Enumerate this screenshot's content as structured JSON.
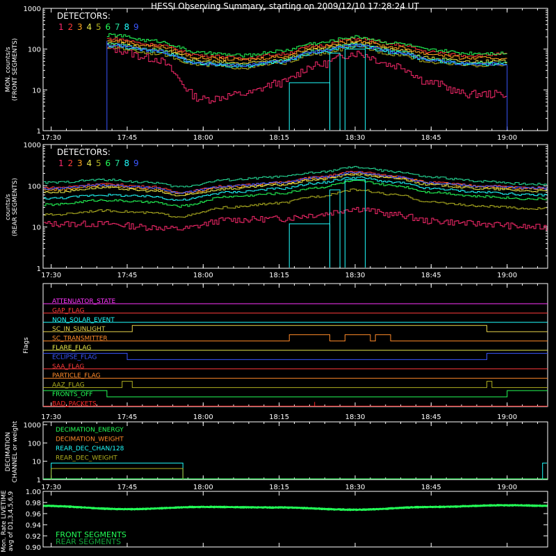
{
  "title": "HESSI Observing Summary, starting on 2009/12/10 17:28:24 UT",
  "time_ticks": [
    "17:30",
    "17:45",
    "18:00",
    "18:15",
    "18:30",
    "18:45",
    "19:00"
  ],
  "detectors_label": "DETECTORS:",
  "detector_nums": [
    "1",
    "2",
    "3",
    "4",
    "5",
    "6",
    "7",
    "8",
    "9"
  ],
  "colors": {
    "det": [
      "#ff2a6e",
      "#ff3b3b",
      "#ffa51f",
      "#e8e84a",
      "#b0b020",
      "#23ff57",
      "#26e09a",
      "#20ffff",
      "#3a56ff"
    ],
    "frame": "#ffffff",
    "background": "#000000"
  },
  "panels": {
    "front": {
      "ylabel_line1": "MON. counts/s",
      "ylabel_line2": "(FRONT SEGMENTS)",
      "y_ticks": [
        "1",
        "10",
        "100",
        "1000"
      ]
    },
    "rear": {
      "ylabel_line1": "counts/s",
      "ylabel_line2": "(REAR SEGMENTS)",
      "y_ticks": [
        "1",
        "10",
        "100",
        "1000"
      ]
    },
    "flags": {
      "ylabel": "Flags",
      "items": [
        {
          "label": "ATTENUATOR_STATE",
          "color": "#ff36ff"
        },
        {
          "label": "GAP_FLAG",
          "color": "#ff3b3b"
        },
        {
          "label": "NON_SOLAR_EVENT",
          "color": "#20ffff"
        },
        {
          "label": "SC_IN_SUNLIGHT",
          "color": "#e8d34a"
        },
        {
          "label": "SC_TRANSMITTER",
          "color": "#ff8a2a"
        },
        {
          "label": "FLARE_FLAG",
          "color": "#e8e84a"
        },
        {
          "label": "ECLIPSE_FLAG",
          "color": "#3a56ff"
        },
        {
          "label": "SAA_FLAG",
          "color": "#ff3b3b"
        },
        {
          "label": "PARTICLE_FLAG",
          "color": "#ff8a2a"
        },
        {
          "label": "AAZ_FLAG",
          "color": "#b0b020"
        },
        {
          "label": "FRONTS_OFF",
          "color": "#23ff57"
        },
        {
          "label": "BAD_PACKETS",
          "color": "#ff2a2a"
        }
      ]
    },
    "decimation": {
      "ylabel_line1": "DECIMATION",
      "ylabel_line2": "CHANNEL or weight",
      "y_ticks": [
        "1",
        "10",
        "100",
        "1000"
      ],
      "legend": [
        {
          "label": "DECIMATION_ENERGY",
          "color": "#23ff57"
        },
        {
          "label": "DECIMATION_WEIGHT",
          "color": "#ff8a2a"
        },
        {
          "label": "REAR_DEC_CHAN/128",
          "color": "#20ffff"
        },
        {
          "label": "REAR_DEC_WEIGHT",
          "color": "#b0b020"
        }
      ]
    },
    "livetime": {
      "ylabel_line1": "Mon. Rate LIVETIME",
      "ylabel_line2": "avg of D1,3,4,5,6,9",
      "y_ticks": [
        "0.90",
        "0.92",
        "0.94",
        "0.96",
        "0.98",
        "1.00"
      ],
      "legend": [
        {
          "label": "FRONT SEGMENTS",
          "color": "#23ff57"
        },
        {
          "label": "REAR SEGMENTS",
          "color": "#13a63a"
        }
      ]
    }
  },
  "chart_data": [
    {
      "type": "line",
      "title": "HESSI Observing Summary, starting on 2009/12/10 17:28:24 UT",
      "ylabel": "MON. counts/s (FRONT SEGMENTS)",
      "yscale": "log",
      "ylim": [
        1,
        1000
      ],
      "xlim": [
        "17:28",
        "19:08"
      ],
      "x": [
        "17:42",
        "17:50",
        "18:00",
        "18:08",
        "18:15",
        "18:22",
        "18:30",
        "18:38",
        "18:45",
        "18:52",
        "19:00"
      ],
      "series": [
        {
          "name": "1",
          "values": [
            100,
            60,
            6,
            8,
            15,
            40,
            80,
            40,
            15,
            8,
            8
          ]
        },
        {
          "name": "2",
          "values": [
            180,
            130,
            70,
            60,
            75,
            120,
            180,
            130,
            85,
            70,
            75
          ]
        },
        {
          "name": "3",
          "values": [
            160,
            120,
            60,
            55,
            65,
            110,
            160,
            110,
            75,
            60,
            60
          ]
        },
        {
          "name": "4",
          "values": [
            140,
            100,
            50,
            45,
            55,
            95,
            140,
            95,
            60,
            50,
            50
          ]
        },
        {
          "name": "5",
          "values": [
            110,
            80,
            40,
            35,
            45,
            75,
            110,
            75,
            48,
            40,
            40
          ]
        },
        {
          "name": "6",
          "values": [
            220,
            160,
            80,
            70,
            90,
            140,
            200,
            140,
            95,
            80,
            80
          ]
        },
        {
          "name": "7",
          "values": [
            130,
            95,
            45,
            40,
            52,
            88,
            130,
            88,
            55,
            45,
            45
          ]
        },
        {
          "name": "8",
          "values": [
            120,
            90,
            42,
            38,
            48,
            82,
            120,
            82,
            52,
            42,
            42
          ]
        },
        {
          "name": "9",
          "values": [
            125,
            92,
            44,
            40,
            50,
            85,
            125,
            85,
            54,
            44,
            44
          ]
        }
      ]
    },
    {
      "type": "line",
      "ylabel": "counts/s (REAR SEGMENTS)",
      "yscale": "log",
      "ylim": [
        1,
        1000
      ],
      "xlim": [
        "17:28",
        "19:08"
      ],
      "x": [
        "17:30",
        "17:40",
        "17:50",
        "17:55",
        "18:05",
        "18:15",
        "18:22",
        "18:30",
        "18:38",
        "18:45",
        "18:55",
        "19:05"
      ],
      "series": [
        {
          "name": "1",
          "values": [
            12,
            12,
            10,
            9,
            15,
            16,
            20,
            28,
            20,
            14,
            12,
            10
          ]
        },
        {
          "name": "2",
          "values": [
            90,
            110,
            95,
            70,
            100,
            120,
            160,
            220,
            170,
            120,
            100,
            90
          ]
        },
        {
          "name": "3",
          "values": [
            80,
            100,
            85,
            65,
            95,
            115,
            150,
            200,
            160,
            115,
            95,
            85
          ]
        },
        {
          "name": "4",
          "values": [
            70,
            90,
            75,
            58,
            85,
            105,
            140,
            190,
            150,
            105,
            85,
            75
          ]
        },
        {
          "name": "5",
          "values": [
            20,
            25,
            22,
            18,
            30,
            38,
            55,
            80,
            60,
            40,
            32,
            28
          ]
        },
        {
          "name": "6",
          "values": [
            35,
            45,
            40,
            32,
            55,
            65,
            90,
            130,
            100,
            70,
            55,
            48
          ]
        },
        {
          "name": "7",
          "values": [
            120,
            140,
            120,
            95,
            140,
            165,
            210,
            280,
            220,
            160,
            130,
            110
          ]
        },
        {
          "name": "8",
          "values": [
            50,
            60,
            55,
            45,
            70,
            85,
            115,
            160,
            120,
            85,
            70,
            60
          ]
        },
        {
          "name": "9",
          "values": [
            85,
            105,
            90,
            68,
            98,
            118,
            155,
            210,
            165,
            118,
            98,
            88
          ]
        }
      ]
    },
    {
      "type": "line",
      "ylabel": "Mon. Rate LIVETIME avg of D1,3,4,5,6,9",
      "ylim": [
        0.9,
        1.0
      ],
      "xlim": [
        "17:28",
        "19:08"
      ],
      "x": [
        "17:28",
        "17:45",
        "18:00",
        "18:15",
        "18:30",
        "18:45",
        "19:00",
        "19:08"
      ],
      "series": [
        {
          "name": "FRONT SEGMENTS",
          "values": [
            0.974,
            0.968,
            0.972,
            0.971,
            0.967,
            0.972,
            0.975,
            0.974
          ]
        }
      ]
    }
  ]
}
